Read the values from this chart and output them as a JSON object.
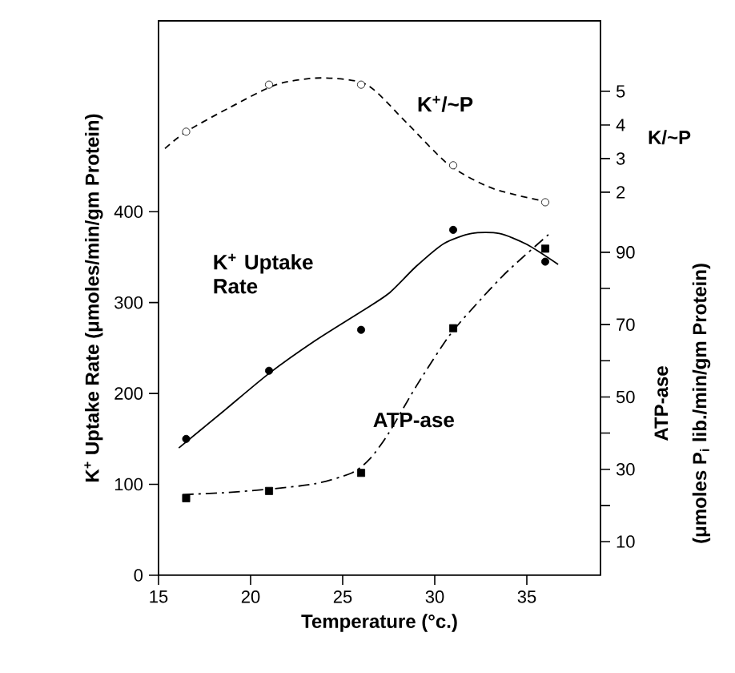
{
  "chart_data": {
    "type": "scatter",
    "xlabel": "Temperature (°c.)",
    "ylabel": "K$^{+}$ Uptake Rate (μmoles/min/gm Protein)",
    "y2label": "ATP-ase",
    "y3label": "K/~P",
    "annotations": [
      "(μmoles P$_{i}$ lib./min/gm Protein)"
    ],
    "xlim": [
      15,
      39
    ],
    "xticks": [
      15,
      20,
      25,
      30,
      35
    ],
    "ylim": [
      0,
      610
    ],
    "yticks": [
      0,
      100,
      200,
      300,
      400
    ],
    "y2lim": [
      0.7,
      154
    ],
    "y2ticks": [
      10,
      {
        "value": 20,
        "label": null
      },
      30,
      {
        "value": 40,
        "label": null
      },
      50,
      {
        "value": 60,
        "label": null
      },
      70,
      {
        "value": 80,
        "label": null
      },
      90
    ],
    "y3lim": [
      -9.4,
      7.1
    ],
    "y3ticks": [
      2,
      3,
      4,
      5
    ],
    "series": [
      {
        "name": "K$^{+}$ Uptake Rate",
        "marker": "circle",
        "color": "#000000",
        "x": [
          16.5,
          21,
          26,
          31,
          36
        ],
        "values": [
          150,
          225,
          270,
          380,
          345
        ]
      },
      {
        "type": "line",
        "line_style": "solid",
        "color": "#000000",
        "x": [
          16.1,
          18.5,
          21,
          23.5,
          26,
          27.5,
          29,
          30.5,
          32,
          33.5,
          35,
          36.7
        ],
        "values": [
          140,
          180,
          222,
          258,
          290,
          310,
          340,
          365,
          376,
          376,
          364,
          342
        ]
      },
      {
        "name": "ATP-ase",
        "axis": "y2",
        "marker": "square",
        "color": "#000000",
        "x": [
          16.5,
          21,
          26,
          31,
          36
        ],
        "values": [
          22,
          24,
          29,
          69,
          91
        ]
      },
      {
        "type": "line",
        "axis": "y2",
        "line_style": "dashdot",
        "color": "#000000",
        "x": [
          16.3,
          18.5,
          21,
          23.5,
          25.5,
          26.5,
          27.5,
          29,
          30.8,
          32.5,
          34,
          36.2
        ],
        "values": [
          23,
          23.5,
          24.5,
          26,
          29,
          33,
          40,
          53,
          67,
          77,
          85,
          95
        ]
      },
      {
        "name": "K$^{+}$/~P",
        "axis": "y3",
        "marker": "circle",
        "color": "#ffffff",
        "x": [
          16.5,
          21,
          26,
          31,
          36
        ],
        "values": [
          3.8,
          5.2,
          5.2,
          2.8,
          1.7
        ]
      },
      {
        "type": "line",
        "axis": "y3",
        "line_style": "dashed",
        "color": "#000000",
        "x": [
          15.35,
          16.5,
          18.8,
          21.4,
          23.8,
          26.3,
          28.5,
          30.8,
          33.2,
          36.2
        ],
        "values": [
          3.3,
          3.8,
          4.5,
          5.2,
          5.4,
          5.2,
          4.05,
          2.8,
          2.1,
          1.7
        ]
      }
    ]
  }
}
